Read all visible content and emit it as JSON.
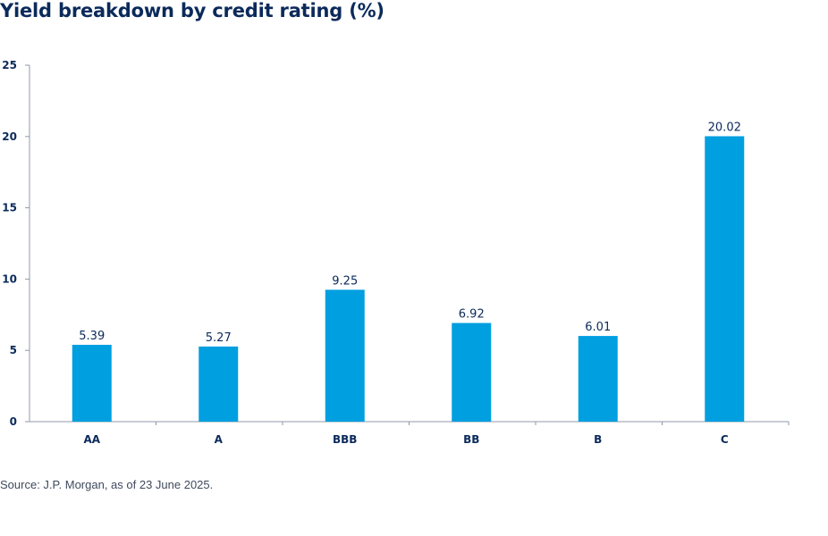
{
  "header": {
    "title": "Yield breakdown by credit rating (%)"
  },
  "footer": {
    "source": "Source: J.P. Morgan, as of 23 June 2025."
  },
  "colors": {
    "bar": "#009fe0",
    "text": "#0b2a5b",
    "axis": "#8f9aa8"
  },
  "chart_data": {
    "type": "bar",
    "title": "Yield breakdown by credit rating (%)",
    "xlabel": "",
    "ylabel": "",
    "categories": [
      "AA",
      "A",
      "BBB",
      "BB",
      "B",
      "C"
    ],
    "values": [
      5.39,
      5.27,
      9.25,
      6.92,
      6.01,
      20.02
    ],
    "value_labels": [
      "5.39",
      "5.27",
      "9.25",
      "6.92",
      "6.01",
      "20.02"
    ],
    "ylim": [
      0,
      25
    ],
    "yticks": [
      0,
      5,
      10,
      15,
      20,
      25
    ],
    "grid": false,
    "legend": "none"
  }
}
